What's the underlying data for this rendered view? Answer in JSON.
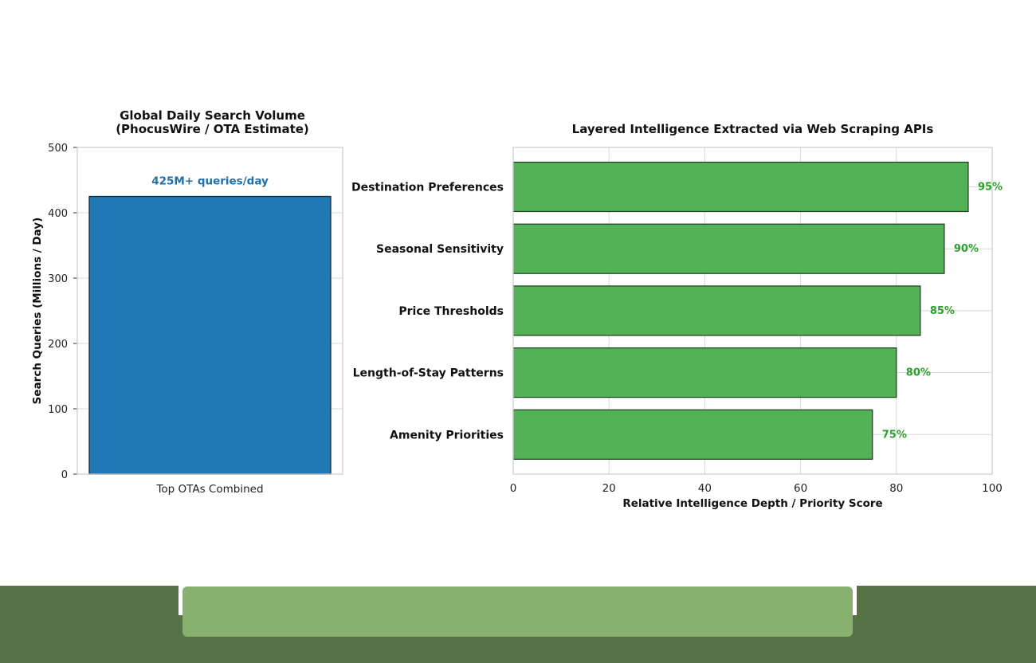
{
  "colors": {
    "bar_blue": "#1f77b4",
    "bar_green": "#4caf50",
    "label_blue": "#1f6fa8",
    "label_green": "#2ca02c",
    "grid": "#d9d9d9",
    "axis": "#cccccc",
    "footer_dark": "#577244",
    "footer_light": "#88b06f"
  },
  "chart_data": [
    {
      "type": "bar",
      "title_line1": "Global Daily Search Volume",
      "title_line2": "(PhocusWire / OTA Estimate)",
      "categories": [
        "Top OTAs Combined"
      ],
      "values": [
        425
      ],
      "value_labels": [
        "425M+ queries/day"
      ],
      "xlabel": "",
      "ylabel": "Search Queries (Millions / Day)",
      "ylim": [
        0,
        500
      ],
      "yticks": [
        0,
        100,
        200,
        300,
        400,
        500
      ],
      "grid": true
    },
    {
      "type": "bar",
      "orientation": "horizontal",
      "title": "Layered Intelligence Extracted via Web Scraping APIs",
      "categories": [
        "Destination Preferences",
        "Seasonal Sensitivity",
        "Price Thresholds",
        "Length-of-Stay Patterns",
        "Amenity Priorities"
      ],
      "values": [
        95,
        90,
        85,
        80,
        75
      ],
      "value_labels": [
        "95%",
        "90%",
        "85%",
        "80%",
        "75%"
      ],
      "xlabel": "Relative Intelligence Depth / Priority Score",
      "ylabel": "",
      "xlim": [
        0,
        100
      ],
      "xticks": [
        0,
        20,
        40,
        60,
        80,
        100
      ],
      "grid": true
    }
  ]
}
